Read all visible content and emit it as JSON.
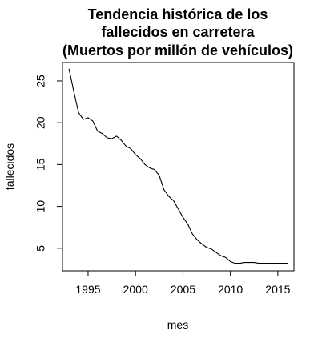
{
  "chart_data": {
    "type": "line",
    "title_lines": [
      "Tendencia histórica de los",
      "fallecidos en carretera",
      "(Muertos por millón de vehículos)"
    ],
    "xlabel": "mes",
    "ylabel": "fallecidos",
    "xlim": [
      1992.3,
      2016.7
    ],
    "ylim": [
      2.3,
      27.2
    ],
    "x_ticks": [
      1995,
      2000,
      2005,
      2010,
      2015
    ],
    "x_tick_labels": [
      "1995",
      "2000",
      "2005",
      "2010",
      "2015"
    ],
    "y_ticks": [
      5,
      10,
      15,
      20,
      25
    ],
    "y_tick_labels": [
      "5",
      "10",
      "15",
      "20",
      "25"
    ],
    "grid": false,
    "legend": "none",
    "line_color": "#000000",
    "series": [
      {
        "x": [
          1993.0,
          1993.5,
          1994.0,
          1994.5,
          1995.0,
          1995.5,
          1996.0,
          1996.5,
          1997.0,
          1997.5,
          1998.0,
          1998.5,
          1999.0,
          1999.5,
          2000.0,
          2000.5,
          2001.0,
          2001.5,
          2002.0,
          2002.5,
          2003.0,
          2003.5,
          2004.0,
          2004.5,
          2005.0,
          2005.5,
          2006.0,
          2006.5,
          2007.0,
          2007.5,
          2008.0,
          2008.5,
          2009.0,
          2009.5,
          2010.0,
          2010.5,
          2011.0,
          2011.5,
          2012.0,
          2012.5,
          2013.0,
          2013.5,
          2014.0,
          2014.5,
          2015.0,
          2015.5,
          2016.0
        ],
        "values": [
          26.4,
          23.7,
          21.2,
          20.4,
          20.6,
          20.2,
          19.0,
          18.7,
          18.2,
          18.1,
          18.4,
          17.9,
          17.2,
          16.9,
          16.2,
          15.7,
          15.0,
          14.6,
          14.4,
          13.7,
          12.0,
          11.2,
          10.7,
          9.7,
          8.7,
          7.9,
          6.7,
          6.0,
          5.5,
          5.1,
          4.9,
          4.5,
          4.1,
          3.9,
          3.4,
          3.2,
          3.2,
          3.3,
          3.3,
          3.3,
          3.2,
          3.2,
          3.2,
          3.2,
          3.2,
          3.2,
          3.2
        ]
      }
    ]
  }
}
